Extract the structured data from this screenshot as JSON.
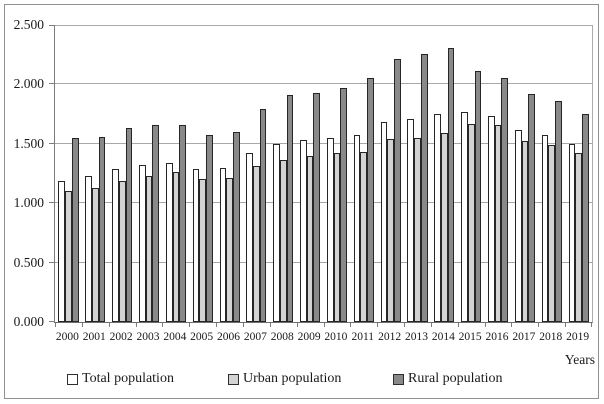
{
  "figure": {
    "background": "#ffffff",
    "border_color": "#919191"
  },
  "chart_data": {
    "type": "bar",
    "title": "",
    "xlabel": "Years",
    "ylabel": "",
    "ylim": [
      0,
      2.5
    ],
    "ytick_step": 0.5,
    "ytick_labels": [
      "0.000",
      "0.500",
      "1.000",
      "1.500",
      "2.000",
      "2.500"
    ],
    "grid": true,
    "legend_position": "bottom",
    "categories": [
      "2000",
      "2001",
      "2002",
      "2003",
      "2004",
      "2005",
      "2006",
      "2007",
      "2008",
      "2009",
      "2010",
      "2011",
      "2012",
      "2013",
      "2014",
      "2015",
      "2016",
      "2017",
      "2018",
      "2019"
    ],
    "series": [
      {
        "name": "Total population",
        "color": "#ffffff",
        "values": [
          1.19,
          1.23,
          1.29,
          1.32,
          1.34,
          1.29,
          1.3,
          1.42,
          1.5,
          1.53,
          1.55,
          1.57,
          1.68,
          1.71,
          1.75,
          1.77,
          1.73,
          1.62,
          1.57,
          1.5
        ]
      },
      {
        "name": "Urban population",
        "color": "#d3d3d3",
        "values": [
          1.1,
          1.13,
          1.19,
          1.23,
          1.26,
          1.2,
          1.21,
          1.31,
          1.36,
          1.4,
          1.42,
          1.43,
          1.54,
          1.55,
          1.59,
          1.67,
          1.66,
          1.52,
          1.49,
          1.42
        ]
      },
      {
        "name": "Rural population",
        "color": "#898989",
        "values": [
          1.55,
          1.56,
          1.63,
          1.66,
          1.66,
          1.57,
          1.6,
          1.79,
          1.91,
          1.93,
          1.97,
          2.05,
          2.21,
          2.26,
          2.31,
          2.11,
          2.05,
          1.92,
          1.86,
          1.75
        ]
      }
    ],
    "bar_border_color": "#262626",
    "gridline_color": "#a8a8a8",
    "axis_color": "#7d7d7d"
  }
}
